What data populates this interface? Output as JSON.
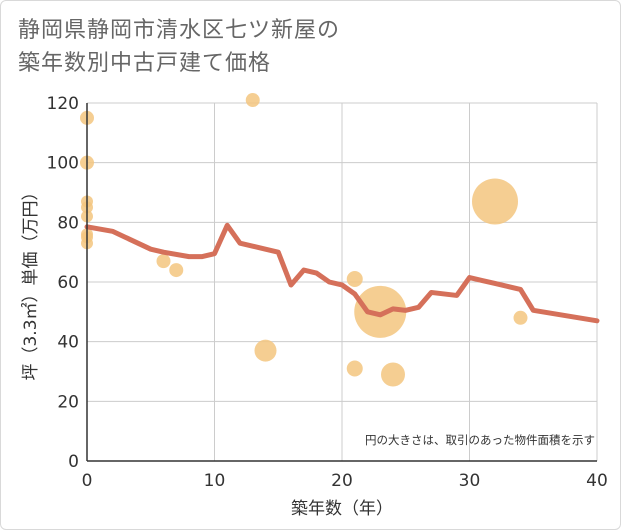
{
  "chart_data": {
    "type": "scatter",
    "title": [
      "静岡県静岡市清水区七ツ新屋の",
      "築年数別中古戸建て価格"
    ],
    "xlabel": "築年数（年）",
    "ylabel": "坪（3.3㎡）単価（万円）",
    "xlim": [
      0,
      40
    ],
    "ylim": [
      0,
      120
    ],
    "xticks": [
      0,
      10,
      20,
      30,
      40
    ],
    "yticks": [
      0,
      20,
      40,
      60,
      80,
      100,
      120
    ],
    "note": "円の大きさは、取引のあった物件面積を示す",
    "colors": {
      "bubble": "#f3c57f",
      "line": "#d5705a",
      "grid": "#cccccc",
      "plot_bg": "#ffffff"
    },
    "scatter": [
      {
        "x": 0,
        "y": 115,
        "s": 7
      },
      {
        "x": 0,
        "y": 100,
        "s": 7
      },
      {
        "x": 0,
        "y": 87,
        "s": 6
      },
      {
        "x": 0,
        "y": 85,
        "s": 6
      },
      {
        "x": 0,
        "y": 82,
        "s": 6
      },
      {
        "x": 0,
        "y": 76,
        "s": 6
      },
      {
        "x": 0,
        "y": 75,
        "s": 6
      },
      {
        "x": 0,
        "y": 73,
        "s": 6
      },
      {
        "x": 6,
        "y": 67,
        "s": 7
      },
      {
        "x": 7,
        "y": 64,
        "s": 7
      },
      {
        "x": 13,
        "y": 121,
        "s": 7
      },
      {
        "x": 14,
        "y": 37,
        "s": 11
      },
      {
        "x": 21,
        "y": 61,
        "s": 8
      },
      {
        "x": 21,
        "y": 31,
        "s": 8
      },
      {
        "x": 23,
        "y": 50,
        "s": 26
      },
      {
        "x": 24,
        "y": 29,
        "s": 12
      },
      {
        "x": 32,
        "y": 87,
        "s": 23
      },
      {
        "x": 34,
        "y": 48,
        "s": 7
      }
    ],
    "line": {
      "x": [
        0,
        2,
        3,
        5,
        6,
        8,
        9,
        10,
        11,
        12,
        13,
        14,
        15,
        16,
        17,
        18,
        19,
        20,
        21,
        22,
        23,
        24,
        25,
        26,
        27,
        28,
        29,
        30,
        31,
        32,
        33,
        34,
        35,
        40
      ],
      "y": [
        78.5,
        77,
        75,
        71,
        70,
        68.5,
        68.5,
        69.5,
        79,
        73,
        72,
        71,
        70,
        59,
        64,
        63,
        60,
        59,
        56,
        50,
        49,
        51,
        50.5,
        51.5,
        56.5,
        56,
        55.5,
        61.5,
        60.5,
        59.5,
        58.5,
        57.5,
        50.5,
        47
      ]
    }
  }
}
